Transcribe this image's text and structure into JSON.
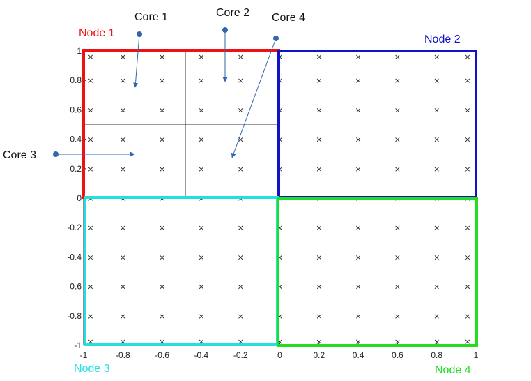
{
  "chart_data": {
    "type": "scatter",
    "x": [
      -1,
      -0.8,
      -0.6,
      -0.4,
      -0.2,
      0,
      0.2,
      0.4,
      0.6,
      0.8,
      1
    ],
    "y": [
      -1,
      -0.8,
      -0.6,
      -0.4,
      -0.2,
      0,
      0.2,
      0.4,
      0.6,
      0.8,
      1
    ],
    "xlim": [
      -1,
      1
    ],
    "ylim": [
      -1,
      1
    ],
    "x_ticks": [
      "-1",
      "-0.8",
      "-0.6",
      "-0.4",
      "-0.2",
      "0",
      "0.2",
      "0.4",
      "0.6",
      "0.8",
      "1"
    ],
    "y_ticks": [
      "1",
      "0.8",
      "0.6",
      "0.4",
      "0.2",
      "0",
      "-0.2",
      "-0.4",
      "-0.6",
      "-0.8",
      "-1"
    ],
    "grid_marker": "×",
    "grid_x": [
      -1,
      -0.8,
      -0.6,
      -0.4,
      -0.2,
      0,
      0.2,
      0.4,
      0.6,
      0.8,
      1
    ],
    "grid_y": [
      1,
      0.8,
      0.6,
      0.4,
      0.2,
      0,
      -0.2,
      -0.4,
      -0.6,
      -0.8,
      -1
    ]
  },
  "nodes": [
    {
      "label": "Node 1",
      "color": "#ee1111"
    },
    {
      "label": "Node 2",
      "color": "#1111cc"
    },
    {
      "label": "Node 3",
      "color": "#22e0e0"
    },
    {
      "label": "Node 4",
      "color": "#22dd22"
    }
  ],
  "cores": [
    {
      "label": "Core 1"
    },
    {
      "label": "Core 2"
    },
    {
      "label": "Core 3"
    },
    {
      "label": "Core 4"
    }
  ],
  "annotation_color": "#3366aa"
}
